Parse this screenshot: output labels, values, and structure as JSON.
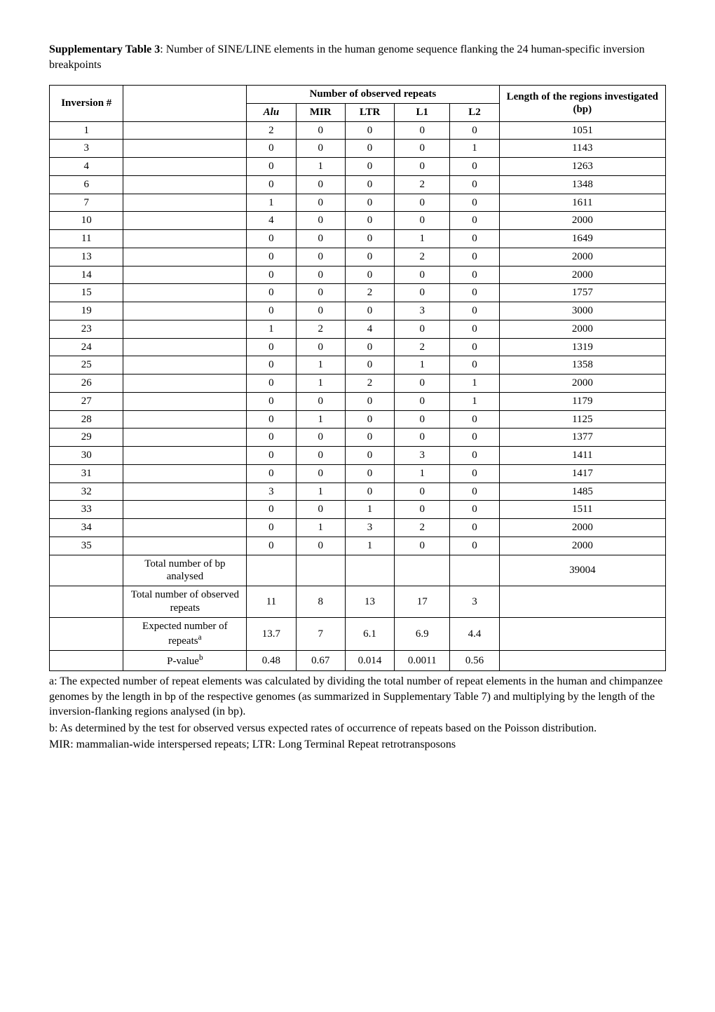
{
  "caption": {
    "label": "Supplementary Table 3",
    "text": ": Number of SINE/LINE elements in the human genome sequence flanking the 24 human-specific inversion breakpoints"
  },
  "table": {
    "headers": {
      "inversion": "Inversion #",
      "repeats_group": "Number of observed repeats",
      "length": "Length of the regions investigated (bp)",
      "cols": [
        "Alu",
        "MIR",
        "LTR",
        "L1",
        "L2"
      ]
    },
    "rows": [
      {
        "inv": "1",
        "Alu": "2",
        "MIR": "0",
        "LTR": "0",
        "L1": "0",
        "L2": "0",
        "len": "1051"
      },
      {
        "inv": "3",
        "Alu": "0",
        "MIR": "0",
        "LTR": "0",
        "L1": "0",
        "L2": "1",
        "len": "1143"
      },
      {
        "inv": "4",
        "Alu": "0",
        "MIR": "1",
        "LTR": "0",
        "L1": "0",
        "L2": "0",
        "len": "1263"
      },
      {
        "inv": "6",
        "Alu": "0",
        "MIR": "0",
        "LTR": "0",
        "L1": "2",
        "L2": "0",
        "len": "1348"
      },
      {
        "inv": "7",
        "Alu": "1",
        "MIR": "0",
        "LTR": "0",
        "L1": "0",
        "L2": "0",
        "len": "1611"
      },
      {
        "inv": "10",
        "Alu": "4",
        "MIR": "0",
        "LTR": "0",
        "L1": "0",
        "L2": "0",
        "len": "2000"
      },
      {
        "inv": "11",
        "Alu": "0",
        "MIR": "0",
        "LTR": "0",
        "L1": "1",
        "L2": "0",
        "len": "1649"
      },
      {
        "inv": "13",
        "Alu": "0",
        "MIR": "0",
        "LTR": "0",
        "L1": "2",
        "L2": "0",
        "len": "2000"
      },
      {
        "inv": "14",
        "Alu": "0",
        "MIR": "0",
        "LTR": "0",
        "L1": "0",
        "L2": "0",
        "len": "2000"
      },
      {
        "inv": "15",
        "Alu": "0",
        "MIR": "0",
        "LTR": "2",
        "L1": "0",
        "L2": "0",
        "len": "1757"
      },
      {
        "inv": "19",
        "Alu": "0",
        "MIR": "0",
        "LTR": "0",
        "L1": "3",
        "L2": "0",
        "len": "3000"
      },
      {
        "inv": "23",
        "Alu": "1",
        "MIR": "2",
        "LTR": "4",
        "L1": "0",
        "L2": "0",
        "len": "2000"
      },
      {
        "inv": "24",
        "Alu": "0",
        "MIR": "0",
        "LTR": "0",
        "L1": "2",
        "L2": "0",
        "len": "1319"
      },
      {
        "inv": "25",
        "Alu": "0",
        "MIR": "1",
        "LTR": "0",
        "L1": "1",
        "L2": "0",
        "len": "1358"
      },
      {
        "inv": "26",
        "Alu": "0",
        "MIR": "1",
        "LTR": "2",
        "L1": "0",
        "L2": "1",
        "len": "2000"
      },
      {
        "inv": "27",
        "Alu": "0",
        "MIR": "0",
        "LTR": "0",
        "L1": "0",
        "L2": "1",
        "len": "1179"
      },
      {
        "inv": "28",
        "Alu": "0",
        "MIR": "1",
        "LTR": "0",
        "L1": "0",
        "L2": "0",
        "len": "1125"
      },
      {
        "inv": "29",
        "Alu": "0",
        "MIR": "0",
        "LTR": "0",
        "L1": "0",
        "L2": "0",
        "len": "1377"
      },
      {
        "inv": "30",
        "Alu": "0",
        "MIR": "0",
        "LTR": "0",
        "L1": "3",
        "L2": "0",
        "len": "1411"
      },
      {
        "inv": "31",
        "Alu": "0",
        "MIR": "0",
        "LTR": "0",
        "L1": "1",
        "L2": "0",
        "len": "1417"
      },
      {
        "inv": "32",
        "Alu": "3",
        "MIR": "1",
        "LTR": "0",
        "L1": "0",
        "L2": "0",
        "len": "1485"
      },
      {
        "inv": "33",
        "Alu": "0",
        "MIR": "0",
        "LTR": "1",
        "L1": "0",
        "L2": "0",
        "len": "1511"
      },
      {
        "inv": "34",
        "Alu": "0",
        "MIR": "1",
        "LTR": "3",
        "L1": "2",
        "L2": "0",
        "len": "2000"
      },
      {
        "inv": "35",
        "Alu": "0",
        "MIR": "0",
        "LTR": "1",
        "L1": "0",
        "L2": "0",
        "len": "2000"
      }
    ],
    "summary": {
      "total_bp_label": "Total number of bp analysed",
      "total_bp_value": "39004",
      "total_obs_label": "Total number of observed repeats",
      "total_obs": {
        "Alu": "11",
        "MIR": "8",
        "LTR": "13",
        "L1": "17",
        "L2": "3"
      },
      "expected_label_a": "Expected number of repeats",
      "expected_sup": "a",
      "expected": {
        "Alu": "13.7",
        "MIR": "7",
        "LTR": "6.1",
        "L1": "6.9",
        "L2": "4.4"
      },
      "pvalue_label": "P-value",
      "pvalue_sup": "b",
      "pvalue": {
        "Alu": "0.48",
        "MIR": "0.67",
        "LTR": "0.014",
        "L1": "0.0011",
        "L2": "0.56"
      }
    }
  },
  "footnotes": {
    "a": "a: The expected number of repeat elements was calculated by dividing the total number of repeat elements in the human and chimpanzee genomes by the length in bp of the respective genomes (as summarized in Supplementary Table 7) and multiplying by the length of the inversion-flanking regions analysed (in bp).",
    "b": "b: As determined by the test for observed versus expected rates of occurrence of repeats based on the Poisson distribution.",
    "c": "MIR: mammalian-wide interspersed repeats; LTR: Long Terminal Repeat retrotransposons"
  },
  "style": {
    "col_widths": [
      "12%",
      "20%",
      "8%",
      "8%",
      "8%",
      "9%",
      "8%",
      "27%"
    ]
  }
}
